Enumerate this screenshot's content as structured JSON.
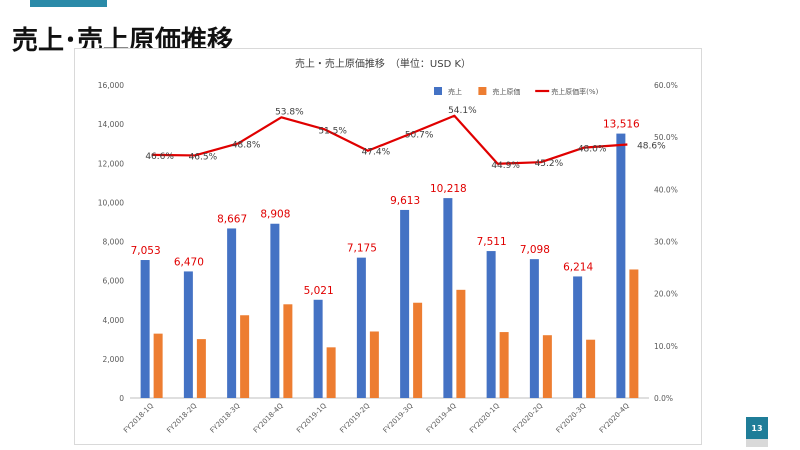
{
  "slide": {
    "title": "売上･売上原価推移",
    "page_number": "13"
  },
  "colors": {
    "accent": "#2a8aa8",
    "sales": "#4472c4",
    "cost": "#ed7d31",
    "ratio_line": "#e00000",
    "data_label": "#e00000"
  },
  "chart_data": {
    "type": "bar",
    "title": "売上・売上原価推移　（単位：USD K）",
    "categories": [
      "FY2018-1Q",
      "FY2018-2Q",
      "FY2018-3Q",
      "FY2018-4Q",
      "FY2019-1Q",
      "FY2019-2Q",
      "FY2019-3Q",
      "FY2019-4Q",
      "FY2020-1Q",
      "FY2020-2Q",
      "FY2020-3Q",
      "FY2020-4Q"
    ],
    "series": [
      {
        "name": "売上",
        "type": "bar",
        "axis": "left",
        "values": [
          7053,
          6470,
          8667,
          8908,
          5021,
          7175,
          9613,
          10218,
          7511,
          7098,
          6214,
          13516
        ],
        "labels": [
          "7,053",
          "6,470",
          "8,667",
          "8,908",
          "5,021",
          "7,175",
          "9,613",
          "10,218",
          "7,511",
          "7,098",
          "6,214",
          "13,516"
        ]
      },
      {
        "name": "売上原価",
        "type": "bar",
        "axis": "left",
        "values": [
          3290,
          3010,
          4230,
          4790,
          2590,
          3400,
          4870,
          5530,
          3370,
          3210,
          2980,
          6570
        ]
      },
      {
        "name": "売上原価率(%)",
        "type": "line",
        "axis": "right",
        "values": [
          46.6,
          46.5,
          48.8,
          53.8,
          51.5,
          47.4,
          50.7,
          54.1,
          44.9,
          45.2,
          48.0,
          48.6
        ],
        "labels": [
          "46.6%",
          "46.5%",
          "48.8%",
          "53.8%",
          "51.5%",
          "47.4%",
          "50.7%",
          "54.1%",
          "44.9%",
          "45.2%",
          "48.0%",
          "48.6%"
        ]
      }
    ],
    "y_left": {
      "min": 0,
      "max": 16000,
      "step": 2000,
      "tick_labels": [
        "0",
        "2,000",
        "4,000",
        "6,000",
        "8,000",
        "10,000",
        "12,000",
        "14,000",
        "16,000"
      ]
    },
    "y_right": {
      "min": 0,
      "max": 60,
      "step": 10,
      "tick_labels": [
        "0.0%",
        "10.0%",
        "20.0%",
        "30.0%",
        "40.0%",
        "50.0%",
        "60.0%"
      ]
    },
    "legend": {
      "position": "top-right",
      "items": [
        "売上",
        "売上原価",
        "売上原価率(%)"
      ]
    },
    "grid": false
  }
}
